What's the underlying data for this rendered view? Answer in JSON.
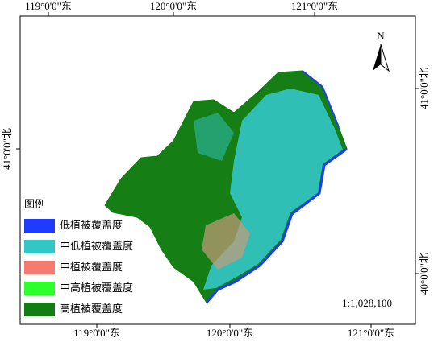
{
  "north_arrow": "N",
  "top_labels": [
    "119°0'0\"东",
    "120°0'0\"东",
    "121°0'0\"东"
  ],
  "bottom_labels": [
    "119°0'0\"东",
    "120°0'0\"东",
    "121°0'0\"东"
  ],
  "left_labels": [
    "41°0'0\"北"
  ],
  "right_labels": [
    "41°0'0\"北",
    "40°0'0\"北"
  ],
  "legend": {
    "title": "图例",
    "items": [
      {
        "label": "低植被覆盖度",
        "color": "#1e3cff"
      },
      {
        "label": "中低植被覆盖度",
        "color": "#33c6c6"
      },
      {
        "label": "中植被覆盖度",
        "color": "#f57a72"
      },
      {
        "label": "中高植被覆盖度",
        "color": "#2cff2c"
      },
      {
        "label": "高植被覆盖度",
        "color": "#127d12"
      }
    ]
  },
  "scale": "1:1,028,100"
}
